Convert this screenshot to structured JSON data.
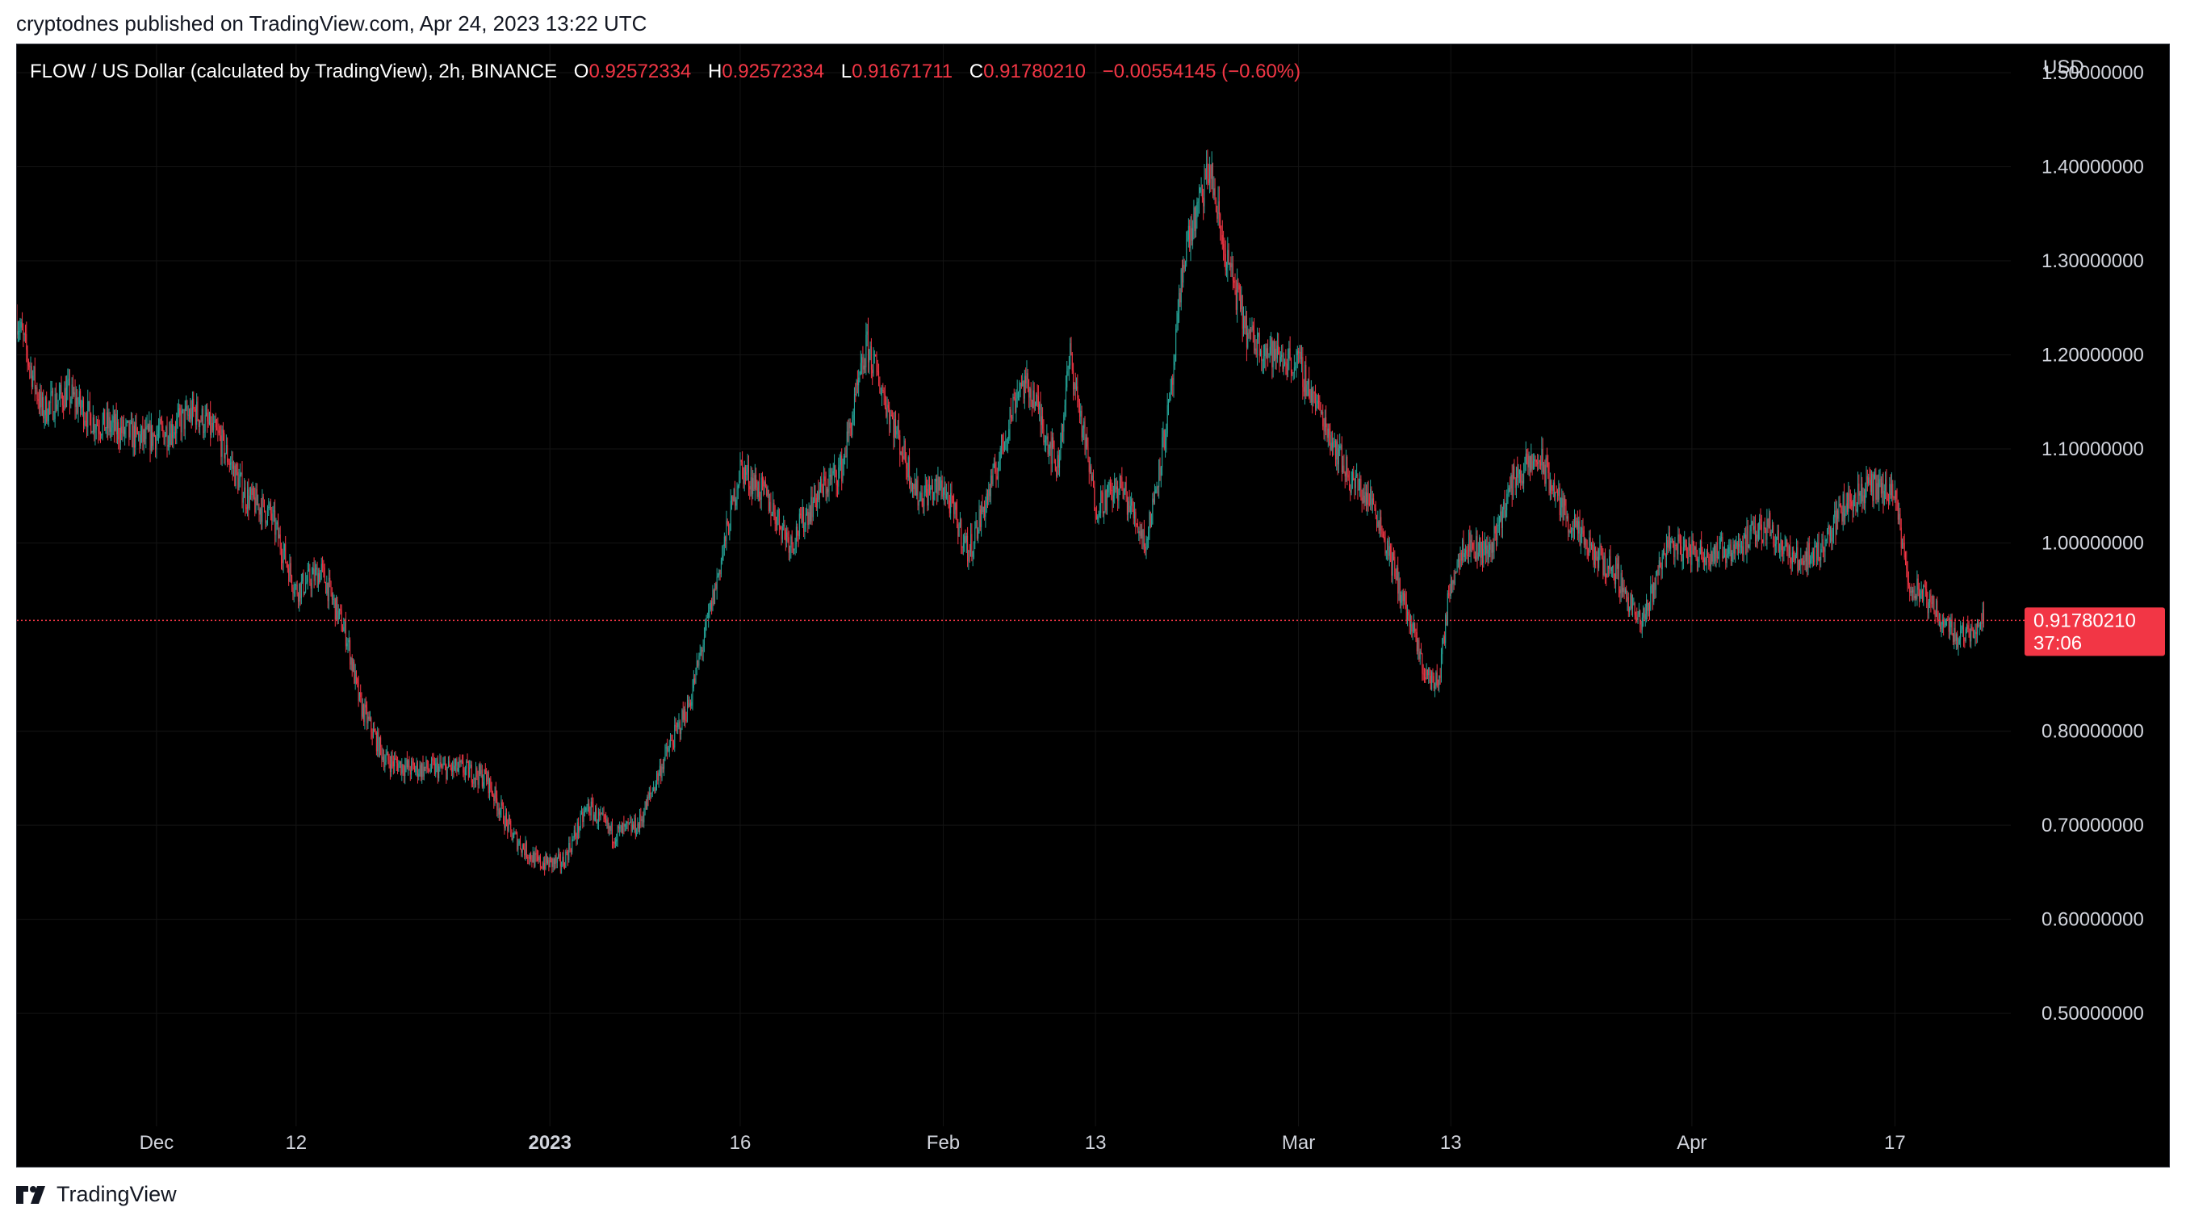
{
  "publisher_text": "cryptodnes published on TradingView.com, Apr 24, 2023 13:22 UTC",
  "legend": {
    "symbol": "FLOW / US Dollar (calculated by TradingView), 2h, BINANCE",
    "open_label": "O",
    "open": "0.92572334",
    "high_label": "H",
    "high": "0.92572334",
    "low_label": "L",
    "low": "0.91671711",
    "close_label": "C",
    "close": "0.91780210",
    "change": "−0.00554145 (−0.60%)"
  },
  "price_tag": {
    "price": "0.91780210",
    "countdown": "37:06"
  },
  "footer": {
    "brand": "TradingView",
    "logo_icon": "tradingview-logo-icon"
  },
  "colors": {
    "up": "#26a69a",
    "down": "#f23645",
    "background": "#000000",
    "axis_text": "#d1d4dc"
  },
  "chart_data": {
    "type": "candlestick",
    "interval": "2h",
    "currency_label": "USD",
    "ylim": [
      0.38,
      1.53
    ],
    "y_ticks": [
      "1.50000000",
      "1.40000000",
      "1.30000000",
      "1.20000000",
      "1.10000000",
      "1.00000000",
      "0.80000000",
      "0.70000000",
      "0.60000000",
      "0.50000000"
    ],
    "y_tick_values": [
      1.5,
      1.4,
      1.3,
      1.2,
      1.1,
      1.0,
      0.8,
      0.7,
      0.6,
      0.5
    ],
    "x_ticks": [
      {
        "label": "Dec",
        "date": "2022-12-01",
        "bold": false
      },
      {
        "label": "12",
        "date": "2022-12-12",
        "bold": false
      },
      {
        "label": "2023",
        "date": "2023-01-01",
        "bold": true
      },
      {
        "label": "16",
        "date": "2023-01-16",
        "bold": false
      },
      {
        "label": "Feb",
        "date": "2023-02-01",
        "bold": false
      },
      {
        "label": "13",
        "date": "2023-02-13",
        "bold": false
      },
      {
        "label": "Mar",
        "date": "2023-03-01",
        "bold": false
      },
      {
        "label": "13",
        "date": "2023-03-13",
        "bold": false
      },
      {
        "label": "Apr",
        "date": "2023-04-01",
        "bold": false
      },
      {
        "label": "17",
        "date": "2023-04-17",
        "bold": false
      }
    ],
    "last_price": 0.9178021,
    "close_series": [
      [
        "2022-11-20",
        1.24
      ],
      [
        "2022-11-22",
        1.14
      ],
      [
        "2022-11-24",
        1.16
      ],
      [
        "2022-11-26",
        1.13
      ],
      [
        "2022-11-28",
        1.12
      ],
      [
        "2022-11-30",
        1.11
      ],
      [
        "2022-12-02",
        1.12
      ],
      [
        "2022-12-04",
        1.14
      ],
      [
        "2022-12-06",
        1.11
      ],
      [
        "2022-12-08",
        1.05
      ],
      [
        "2022-12-10",
        1.03
      ],
      [
        "2022-12-12",
        0.95
      ],
      [
        "2022-12-14",
        0.97
      ],
      [
        "2022-12-16",
        0.9
      ],
      [
        "2022-12-17",
        0.83
      ],
      [
        "2022-12-19",
        0.77
      ],
      [
        "2022-12-21",
        0.76
      ],
      [
        "2022-12-23",
        0.76
      ],
      [
        "2022-12-25",
        0.76
      ],
      [
        "2022-12-27",
        0.75
      ],
      [
        "2022-12-29",
        0.69
      ],
      [
        "2022-12-31",
        0.66
      ],
      [
        "2023-01-02",
        0.66
      ],
      [
        "2023-01-04",
        0.72
      ],
      [
        "2023-01-06",
        0.69
      ],
      [
        "2023-01-08",
        0.7
      ],
      [
        "2023-01-10",
        0.77
      ],
      [
        "2023-01-12",
        0.83
      ],
      [
        "2023-01-14",
        0.95
      ],
      [
        "2023-01-16",
        1.08
      ],
      [
        "2023-01-18",
        1.05
      ],
      [
        "2023-01-20",
        1.0
      ],
      [
        "2023-01-22",
        1.05
      ],
      [
        "2023-01-24",
        1.08
      ],
      [
        "2023-01-26",
        1.21
      ],
      [
        "2023-01-28",
        1.13
      ],
      [
        "2023-01-30",
        1.05
      ],
      [
        "2023-02-01",
        1.06
      ],
      [
        "2023-02-03",
        0.99
      ],
      [
        "2023-02-05",
        1.07
      ],
      [
        "2023-02-07",
        1.17
      ],
      [
        "2023-02-08",
        1.16
      ],
      [
        "2023-02-10",
        1.08
      ],
      [
        "2023-02-11",
        1.2
      ],
      [
        "2023-02-13",
        1.04
      ],
      [
        "2023-02-15",
        1.06
      ],
      [
        "2023-02-17",
        1.0
      ],
      [
        "2023-02-19",
        1.16
      ],
      [
        "2023-02-20",
        1.31
      ],
      [
        "2023-02-21",
        1.35
      ],
      [
        "2023-02-22",
        1.4
      ],
      [
        "2023-02-23",
        1.32
      ],
      [
        "2023-02-25",
        1.22
      ],
      [
        "2023-02-27",
        1.2
      ],
      [
        "2023-03-01",
        1.19
      ],
      [
        "2023-03-03",
        1.13
      ],
      [
        "2023-03-05",
        1.07
      ],
      [
        "2023-03-07",
        1.04
      ],
      [
        "2023-03-09",
        0.95
      ],
      [
        "2023-03-11",
        0.86
      ],
      [
        "2023-03-12",
        0.85
      ],
      [
        "2023-03-13",
        0.96
      ],
      [
        "2023-03-14",
        1.0
      ],
      [
        "2023-03-16",
        0.99
      ],
      [
        "2023-03-18",
        1.07
      ],
      [
        "2023-03-20",
        1.09
      ],
      [
        "2023-03-22",
        1.03
      ],
      [
        "2023-03-24",
        0.99
      ],
      [
        "2023-03-26",
        0.97
      ],
      [
        "2023-03-28",
        0.91
      ],
      [
        "2023-03-30",
        1.0
      ],
      [
        "2023-04-01",
        0.99
      ],
      [
        "2023-04-03",
        0.99
      ],
      [
        "2023-04-05",
        1.0
      ],
      [
        "2023-04-07",
        1.02
      ],
      [
        "2023-04-09",
        0.98
      ],
      [
        "2023-04-11",
        0.99
      ],
      [
        "2023-04-13",
        1.04
      ],
      [
        "2023-04-15",
        1.06
      ],
      [
        "2023-04-17",
        1.05
      ],
      [
        "2023-04-18",
        0.96
      ],
      [
        "2023-04-20",
        0.93
      ],
      [
        "2023-04-22",
        0.9
      ],
      [
        "2023-04-24",
        0.918
      ]
    ]
  }
}
